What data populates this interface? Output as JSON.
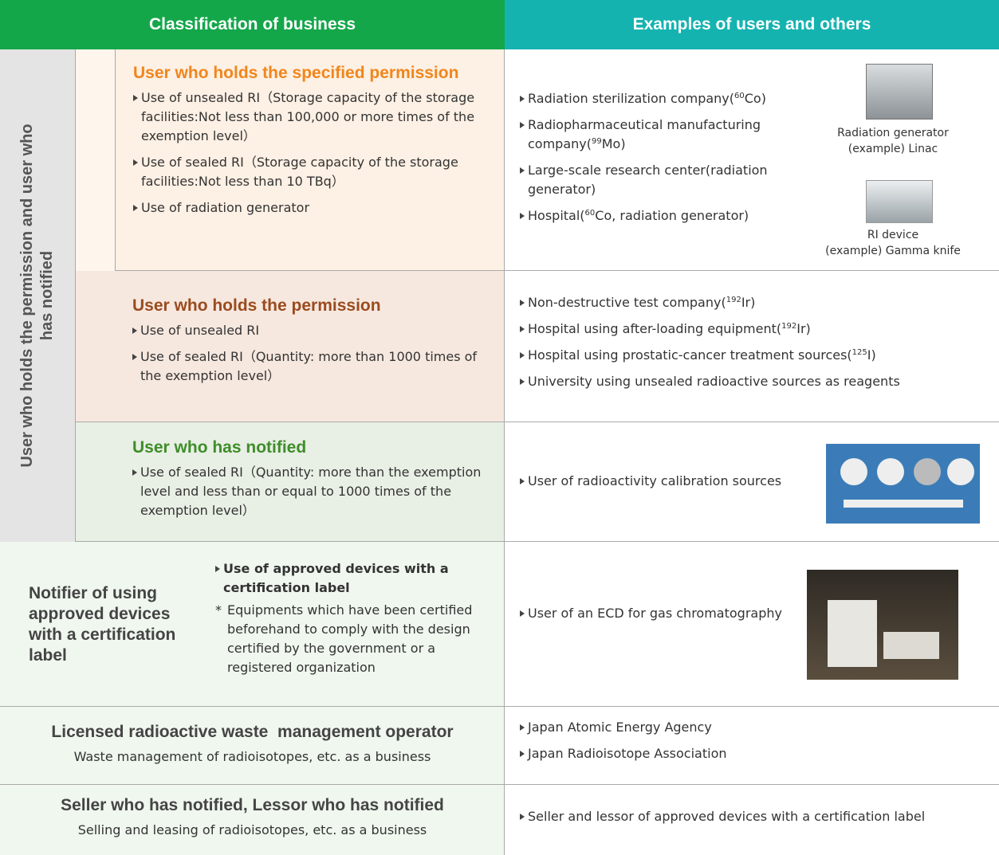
{
  "header": {
    "left": "Classification of business",
    "right": "Examples of users and others"
  },
  "side_label": "User who holds the permission and user who has notified",
  "rows": [
    {
      "title": "User who holds the specified permission",
      "items": [
        "Use of unsealed RI（Storage capacity of the storage facilities:Not less than 100,000 or more times of the exemption level）",
        "Use of sealed RI（Storage capacity of the storage facilities:Not less than 10 TBq）",
        "Use of radiation generator"
      ],
      "examples": [
        {
          "text": "Radiation sterilization company(",
          "sup": "60",
          "rest": "Co)"
        },
        {
          "text": "Radiopharmaceutical manufacturing company(",
          "sup": "99",
          "rest": "Mo)"
        },
        {
          "text": "Large-scale research center(radiation generator)"
        },
        {
          "text": "Hospital(",
          "sup": "60",
          "rest": "Co, radiation generator)"
        }
      ],
      "figures": [
        {
          "caption": [
            "Radiation generator",
            "(example) Linac"
          ]
        },
        {
          "caption": [
            "RI device",
            "(example) Gamma knife"
          ]
        }
      ]
    },
    {
      "title": "User who holds the permission",
      "items": [
        "Use of unsealed RI",
        "Use of sealed RI（Quantity: more than 1000 times of the exemption level）"
      ],
      "examples": [
        {
          "text": "Non-destructive test company(",
          "sup": "192",
          "rest": "Ir)"
        },
        {
          "text": "Hospital using after-loading equipment(",
          "sup": "192",
          "rest": "Ir)"
        },
        {
          "text": "Hospital using prostatic-cancer treatment sources(",
          "sup": "125",
          "rest": "I)"
        },
        {
          "text": "University using unsealed radioactive sources as reagents"
        }
      ]
    },
    {
      "title": "User who has notified",
      "items": [
        "Use of sealed RI（Quantity: more than the exemption level and less than or equal to 1000 times of the exemption level）"
      ],
      "examples": [
        {
          "text": "User of radioactivity calibration sources"
        }
      ]
    },
    {
      "title": "Notifier of using approved devices with a certification label",
      "items": [
        "Use of approved devices with a certification label"
      ],
      "note_mark": "*",
      "note": "Equipments which have been certified beforehand to comply with the design certified by the government or a registered organization",
      "examples": [
        {
          "text": "User of an ECD for gas chromatography"
        }
      ]
    },
    {
      "title": "Licensed radioactive waste  management operator",
      "subtitle": "Waste management of radioisotopes, etc. as a business",
      "examples": [
        {
          "text": "Japan Atomic Energy Agency"
        },
        {
          "text": "Japan Radioisotope Association"
        }
      ]
    },
    {
      "title": "Seller who has notified, Lessor who has notified",
      "subtitle": "Selling and leasing of radioisotopes, etc. as a business",
      "examples": [
        {
          "text": "Seller and lessor of approved devices with a certification label"
        }
      ]
    }
  ]
}
